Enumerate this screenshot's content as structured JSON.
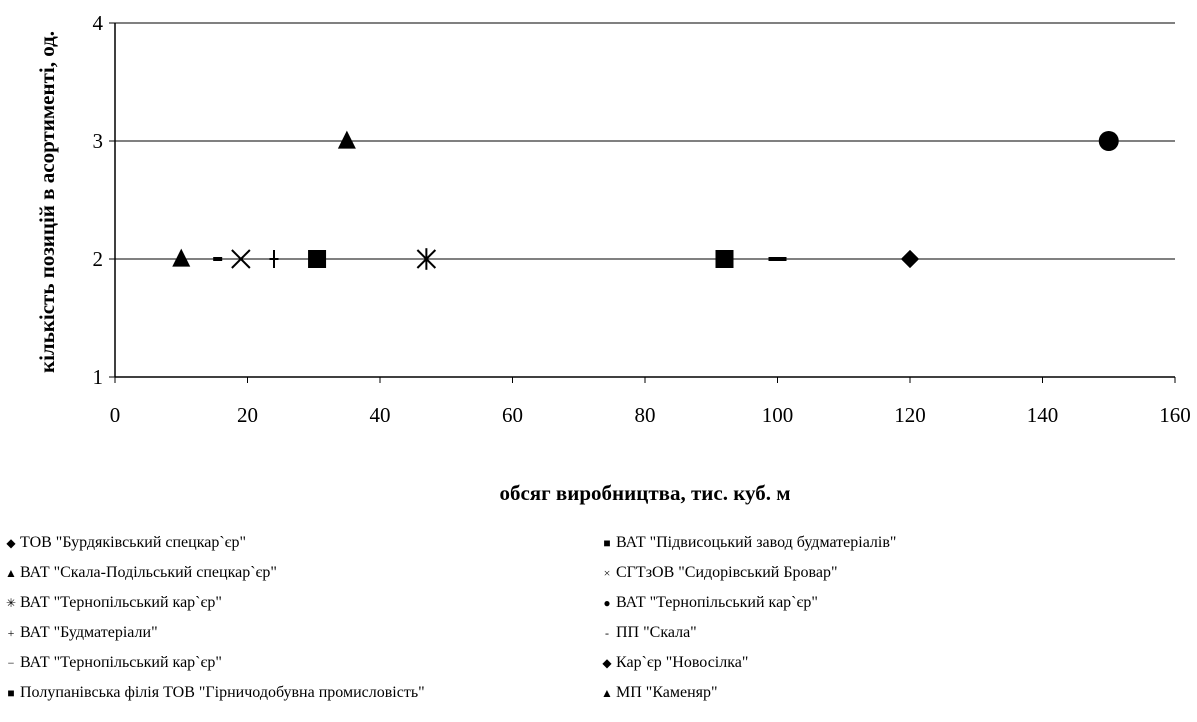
{
  "chart_data": {
    "type": "scatter",
    "xlabel": "обсяг виробництва, тис. куб. м",
    "ylabel": "кількість позицій в асортименті, од.",
    "xlim": [
      0,
      160
    ],
    "ylim": [
      1,
      4
    ],
    "x_ticks": [
      "0",
      "20",
      "40",
      "60",
      "80",
      "100",
      "120",
      "140",
      "160"
    ],
    "y_ticks": [
      "1",
      "2",
      "3",
      "4"
    ],
    "grid": "horizontal",
    "legend_position": "bottom",
    "series": [
      {
        "name": "ТОВ \"Бурдяківський спецкар`єр\"",
        "marker": "diamond",
        "x": 120,
        "y": 2
      },
      {
        "name": "ВАТ \"Підвисоцький завод будматеріалів\"",
        "marker": "square",
        "x": 92,
        "y": 2
      },
      {
        "name": "ВАТ \"Скала-Подільський спецкар`єр\"",
        "marker": "triangle",
        "x": 35,
        "y": 3
      },
      {
        "name": "СГТзОВ \"Сидорівський Бровар\"",
        "marker": "x",
        "x": 19,
        "y": 2
      },
      {
        "name": "ВАТ \"Тернопільський кар`єр\"",
        "marker": "star",
        "x": 47,
        "y": 2
      },
      {
        "name": "ВАТ \"Тернопільський кар`єр\"",
        "marker": "circle",
        "x": 150,
        "y": 3
      },
      {
        "name": "ВАТ \"Будматеріали\"",
        "marker": "plus",
        "x": 24,
        "y": 2
      },
      {
        "name": "ПП \"Скала\"",
        "marker": "dash",
        "x": 15.5,
        "y": 2
      },
      {
        "name": "ВАТ \"Тернопільський кар`єр\"",
        "marker": "longdash",
        "x": 100,
        "y": 2
      },
      {
        "name": "Кар`єр \"Новосілка\"",
        "marker": "diamond",
        "x": 120,
        "y": 2
      },
      {
        "name": "Полупанівська філія ТОВ \"Гірничодобувна промисловість\"",
        "marker": "square",
        "x": 30.5,
        "y": 2
      },
      {
        "name": "МП \"Каменяр\"",
        "marker": "triangle",
        "x": 10,
        "y": 2
      }
    ]
  }
}
